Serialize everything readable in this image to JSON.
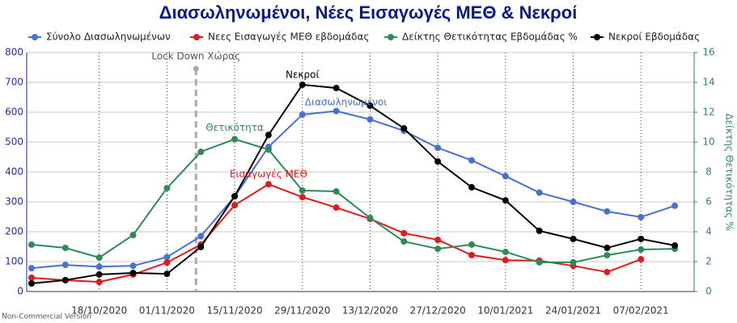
{
  "chart_data": {
    "type": "line",
    "title": "Διασωληνωμένοι, Νέες Εισαγωγές ΜΕΘ & Νεκροί",
    "footer": "Non-Commercial Version",
    "y2label": "Δείκτης Θετικότητας %",
    "x": [
      "04/10/2020",
      "11/10/2020",
      "18/10/2020",
      "25/10/2020",
      "01/11/2020",
      "08/11/2020",
      "15/11/2020",
      "22/11/2020",
      "29/11/2020",
      "06/12/2020",
      "13/12/2020",
      "20/12/2020",
      "27/12/2020",
      "03/01/2021",
      "10/01/2021",
      "17/01/2021",
      "24/01/2021",
      "31/01/2021",
      "07/02/2021",
      "14/02/2021"
    ],
    "xlim": [
      "03/10/2020",
      "18/02/2021"
    ],
    "xticks": [
      "18/10/2020",
      "01/11/2020",
      "15/11/2020",
      "29/11/2020",
      "13/12/2020",
      "27/12/2020",
      "10/01/2021",
      "24/01/2021",
      "07/02/2021"
    ],
    "ylim": [
      0,
      800
    ],
    "yticks": [
      0,
      100,
      200,
      300,
      400,
      500,
      600,
      700,
      800
    ],
    "y2lim": [
      0,
      16
    ],
    "y2ticks": [
      0,
      2,
      4,
      6,
      8,
      10,
      12,
      14,
      16
    ],
    "grid": true,
    "legend": "top",
    "series": [
      {
        "name": "Σύνολο Διασωληνωμένων",
        "color": "#4a6fd6",
        "values": [
          78,
          89,
          83,
          86,
          115,
          185,
          318,
          484,
          592,
          604,
          576,
          538,
          481,
          439,
          386,
          331,
          300,
          268,
          249,
          287
        ]
      },
      {
        "name": "Νεες Εισαγωγές ΜΕΘ εβδομάδας",
        "color": "#e31a1c",
        "values": [
          46,
          38,
          32,
          57,
          97,
          157,
          289,
          359,
          316,
          281,
          243,
          195,
          173,
          122,
          105,
          103,
          86,
          65,
          108,
          null
        ]
      },
      {
        "name": "Δείκτης Θετικότητας Εβδομάδας %",
        "color": "#2e8b57",
        "axis": "y2",
        "values": [
          3.14,
          2.92,
          2.27,
          3.78,
          6.92,
          9.35,
          10.2,
          9.5,
          6.76,
          6.7,
          4.92,
          3.35,
          2.86,
          3.14,
          2.65,
          1.95,
          1.95,
          2.43,
          2.81,
          2.86
        ]
      },
      {
        "name": "Νεκροί Εβδομάδας",
        "color": "#000000",
        "values": [
          27,
          38,
          57,
          62,
          59,
          149,
          319,
          524,
          692,
          681,
          622,
          546,
          435,
          349,
          305,
          203,
          176,
          146,
          176,
          154
        ]
      }
    ],
    "vline": {
      "x": "07/11/2020",
      "label": "Lock Down Χώρας",
      "color": "#aaaaaa"
    },
    "annotations": [
      {
        "text": "Νεκροί",
        "x": "29/11/2020",
        "y": 725,
        "color": "#000000"
      },
      {
        "text": "Διασωληνωμένοι",
        "x": "08/12/2020",
        "y": 632,
        "color": "#4a6fd6"
      },
      {
        "text": "Θετικότητα",
        "x": "15/11/2020",
        "y": 10.95,
        "axis": "y2",
        "color": "#2e8b57"
      },
      {
        "text": "Εισαγωγές ΜΕΘ",
        "x": "22/11/2020",
        "y": 392,
        "color": "#e31a1c"
      }
    ]
  }
}
